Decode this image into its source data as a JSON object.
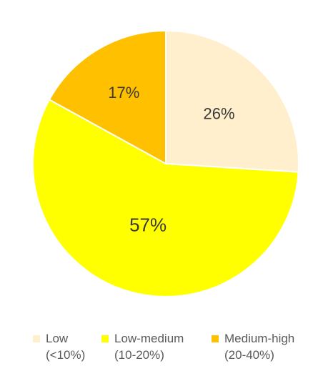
{
  "chart_data": {
    "type": "pie",
    "title": "",
    "slices": [
      {
        "label": "Low (<10%)",
        "value": 26,
        "display": "26%",
        "color": "#FFEFCC"
      },
      {
        "label": "Low-medium (10-20%)",
        "value": 57,
        "display": "57%",
        "color": "#FFFF00"
      },
      {
        "label": "Medium-high (20-40%)",
        "value": 17,
        "display": "17%",
        "color": "#FFC000"
      }
    ],
    "legend": {
      "position": "bottom",
      "items": [
        {
          "line1": "Low",
          "line2": "(<10%)",
          "color": "#FFEFCC"
        },
        {
          "line1": "Low-medium",
          "line2": "(10-20%)",
          "color": "#FFFF00"
        },
        {
          "line1": "Medium-high",
          "line2": "(20-40%)",
          "color": "#FFC000"
        }
      ]
    }
  }
}
